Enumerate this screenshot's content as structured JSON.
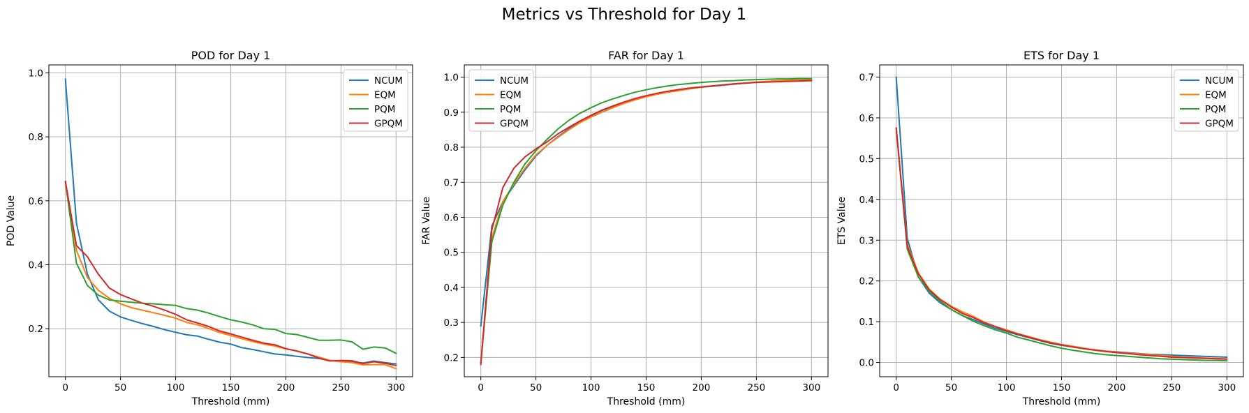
{
  "figure_title": "Metrics vs Threshold for Day 1",
  "chart_data": [
    {
      "type": "line",
      "title": "POD for Day 1",
      "xlabel": "Threshold (mm)",
      "ylabel": "POD Value",
      "xlim": [
        -15,
        315
      ],
      "ylim": [
        0.05,
        1.025
      ],
      "xticks": [
        0,
        50,
        100,
        150,
        200,
        250,
        300
      ],
      "xtick_labels": [
        "0",
        "50",
        "100",
        "150",
        "200",
        "250",
        "300"
      ],
      "yticks": [
        0.2,
        0.4,
        0.6,
        0.8,
        1.0
      ],
      "ytick_labels": [
        "0.2",
        "0.4",
        "0.6",
        "0.8",
        "1.0"
      ],
      "grid": true,
      "legend": "top-right",
      "x": [
        0,
        10,
        20,
        30,
        40,
        50,
        60,
        70,
        80,
        90,
        100,
        110,
        120,
        130,
        140,
        150,
        160,
        170,
        180,
        190,
        200,
        210,
        220,
        230,
        240,
        250,
        260,
        270,
        280,
        290,
        300
      ],
      "series": [
        {
          "name": "NCUM",
          "color": "#1f77b4",
          "values": [
            0.98,
            0.53,
            0.37,
            0.29,
            0.255,
            0.237,
            0.226,
            0.216,
            0.207,
            0.197,
            0.189,
            0.181,
            0.177,
            0.167,
            0.158,
            0.152,
            0.141,
            0.135,
            0.128,
            0.121,
            0.118,
            0.114,
            0.11,
            0.107,
            0.101,
            0.099,
            0.096,
            0.093,
            0.099,
            0.094,
            0.09
          ]
        },
        {
          "name": "EQM",
          "color": "#ff7f0e",
          "values": [
            0.66,
            0.445,
            0.36,
            0.32,
            0.295,
            0.278,
            0.266,
            0.258,
            0.25,
            0.242,
            0.233,
            0.22,
            0.212,
            0.201,
            0.188,
            0.179,
            0.169,
            0.16,
            0.152,
            0.146,
            0.137,
            0.131,
            0.121,
            0.111,
            0.101,
            0.097,
            0.094,
            0.087,
            0.088,
            0.088,
            0.075
          ]
        },
        {
          "name": "PQM",
          "color": "#2ca02c",
          "values": [
            0.66,
            0.405,
            0.335,
            0.305,
            0.29,
            0.286,
            0.283,
            0.28,
            0.278,
            0.275,
            0.273,
            0.263,
            0.258,
            0.249,
            0.238,
            0.228,
            0.221,
            0.212,
            0.2,
            0.198,
            0.185,
            0.182,
            0.173,
            0.164,
            0.164,
            0.165,
            0.159,
            0.136,
            0.143,
            0.14,
            0.123
          ]
        },
        {
          "name": "GPQM",
          "color": "#d62728",
          "values": [
            0.66,
            0.46,
            0.425,
            0.37,
            0.327,
            0.307,
            0.293,
            0.28,
            0.27,
            0.258,
            0.245,
            0.228,
            0.218,
            0.207,
            0.193,
            0.184,
            0.174,
            0.164,
            0.155,
            0.15,
            0.138,
            0.13,
            0.121,
            0.108,
            0.099,
            0.101,
            0.1,
            0.091,
            0.097,
            0.092,
            0.085
          ]
        }
      ]
    },
    {
      "type": "line",
      "title": "FAR for Day 1",
      "xlabel": "Threshold (mm)",
      "ylabel": "FAR Value",
      "xlim": [
        -15,
        315
      ],
      "ylim": [
        0.145,
        1.035
      ],
      "xticks": [
        0,
        50,
        100,
        150,
        200,
        250,
        300
      ],
      "xtick_labels": [
        "0",
        "50",
        "100",
        "150",
        "200",
        "250",
        "300"
      ],
      "yticks": [
        0.2,
        0.3,
        0.4,
        0.5,
        0.6,
        0.7,
        0.8,
        0.9,
        1.0
      ],
      "ytick_labels": [
        "0.2",
        "0.3",
        "0.4",
        "0.5",
        "0.6",
        "0.7",
        "0.8",
        "0.9",
        "1.0"
      ],
      "grid": true,
      "legend": "top-left",
      "x": [
        0,
        10,
        20,
        30,
        40,
        50,
        60,
        70,
        80,
        90,
        100,
        110,
        120,
        130,
        140,
        150,
        160,
        170,
        180,
        190,
        200,
        210,
        220,
        230,
        240,
        250,
        260,
        270,
        280,
        290,
        300
      ],
      "series": [
        {
          "name": "NCUM",
          "color": "#1f77b4",
          "values": [
            0.29,
            0.575,
            0.645,
            0.69,
            0.735,
            0.775,
            0.805,
            0.83,
            0.853,
            0.873,
            0.89,
            0.905,
            0.917,
            0.928,
            0.938,
            0.946,
            0.953,
            0.959,
            0.964,
            0.968,
            0.971,
            0.974,
            0.977,
            0.98,
            0.983,
            0.985,
            0.987,
            0.988,
            0.99,
            0.991,
            0.992
          ]
        },
        {
          "name": "EQM",
          "color": "#ff7f0e",
          "values": [
            0.185,
            0.54,
            0.645,
            0.695,
            0.74,
            0.778,
            0.805,
            0.828,
            0.85,
            0.87,
            0.886,
            0.9,
            0.913,
            0.925,
            0.935,
            0.944,
            0.951,
            0.957,
            0.962,
            0.967,
            0.971,
            0.975,
            0.978,
            0.981,
            0.983,
            0.986,
            0.988,
            0.99,
            0.991,
            0.992,
            0.993
          ]
        },
        {
          "name": "PQM",
          "color": "#2ca02c",
          "values": [
            0.185,
            0.53,
            0.635,
            0.7,
            0.752,
            0.79,
            0.822,
            0.852,
            0.877,
            0.897,
            0.913,
            0.927,
            0.938,
            0.948,
            0.957,
            0.964,
            0.97,
            0.975,
            0.979,
            0.982,
            0.985,
            0.987,
            0.989,
            0.99,
            0.992,
            0.993,
            0.994,
            0.995,
            0.995,
            0.996,
            0.996
          ]
        },
        {
          "name": "GPQM",
          "color": "#d62728",
          "values": [
            0.18,
            0.565,
            0.685,
            0.74,
            0.772,
            0.795,
            0.815,
            0.838,
            0.857,
            0.875,
            0.891,
            0.906,
            0.918,
            0.929,
            0.939,
            0.947,
            0.954,
            0.96,
            0.965,
            0.969,
            0.972,
            0.975,
            0.978,
            0.981,
            0.983,
            0.985,
            0.986,
            0.987,
            0.988,
            0.989,
            0.99
          ]
        }
      ]
    },
    {
      "type": "line",
      "title": "ETS for Day 1",
      "xlabel": "Threshold (mm)",
      "ylabel": "ETS Value",
      "xlim": [
        -15,
        315
      ],
      "ylim": [
        -0.035,
        0.73
      ],
      "xticks": [
        0,
        50,
        100,
        150,
        200,
        250,
        300
      ],
      "xtick_labels": [
        "0",
        "50",
        "100",
        "150",
        "200",
        "250",
        "300"
      ],
      "yticks": [
        0.0,
        0.1,
        0.2,
        0.3,
        0.4,
        0.5,
        0.6,
        0.7
      ],
      "ytick_labels": [
        "0.0",
        "0.1",
        "0.2",
        "0.3",
        "0.4",
        "0.5",
        "0.6",
        "0.7"
      ],
      "grid": true,
      "legend": "top-right",
      "x": [
        0,
        10,
        20,
        30,
        40,
        50,
        60,
        70,
        80,
        90,
        100,
        110,
        120,
        130,
        140,
        150,
        160,
        170,
        180,
        190,
        200,
        210,
        220,
        230,
        240,
        250,
        260,
        270,
        280,
        290,
        300
      ],
      "series": [
        {
          "name": "NCUM",
          "color": "#1f77b4",
          "values": [
            0.7,
            0.305,
            0.21,
            0.17,
            0.146,
            0.13,
            0.115,
            0.105,
            0.094,
            0.084,
            0.076,
            0.068,
            0.061,
            0.054,
            0.047,
            0.042,
            0.038,
            0.034,
            0.031,
            0.028,
            0.026,
            0.024,
            0.022,
            0.02,
            0.019,
            0.018,
            0.017,
            0.016,
            0.015,
            0.014,
            0.013
          ]
        },
        {
          "name": "EQM",
          "color": "#ff7f0e",
          "values": [
            0.575,
            0.29,
            0.22,
            0.18,
            0.155,
            0.138,
            0.124,
            0.113,
            0.099,
            0.088,
            0.08,
            0.071,
            0.064,
            0.056,
            0.05,
            0.044,
            0.04,
            0.035,
            0.031,
            0.028,
            0.025,
            0.023,
            0.021,
            0.019,
            0.017,
            0.015,
            0.013,
            0.012,
            0.011,
            0.01,
            0.009
          ]
        },
        {
          "name": "PQM",
          "color": "#2ca02c",
          "values": [
            0.575,
            0.278,
            0.21,
            0.175,
            0.15,
            0.13,
            0.115,
            0.101,
            0.09,
            0.08,
            0.072,
            0.062,
            0.055,
            0.048,
            0.041,
            0.035,
            0.03,
            0.026,
            0.022,
            0.019,
            0.017,
            0.015,
            0.013,
            0.011,
            0.009,
            0.008,
            0.007,
            0.006,
            0.005,
            0.005,
            0.004
          ]
        },
        {
          "name": "GPQM",
          "color": "#d62728",
          "values": [
            0.575,
            0.285,
            0.218,
            0.178,
            0.154,
            0.136,
            0.12,
            0.11,
            0.097,
            0.088,
            0.078,
            0.07,
            0.062,
            0.055,
            0.048,
            0.043,
            0.038,
            0.034,
            0.03,
            0.027,
            0.024,
            0.022,
            0.019,
            0.017,
            0.015,
            0.013,
            0.012,
            0.011,
            0.01,
            0.009,
            0.008
          ]
        }
      ]
    }
  ]
}
